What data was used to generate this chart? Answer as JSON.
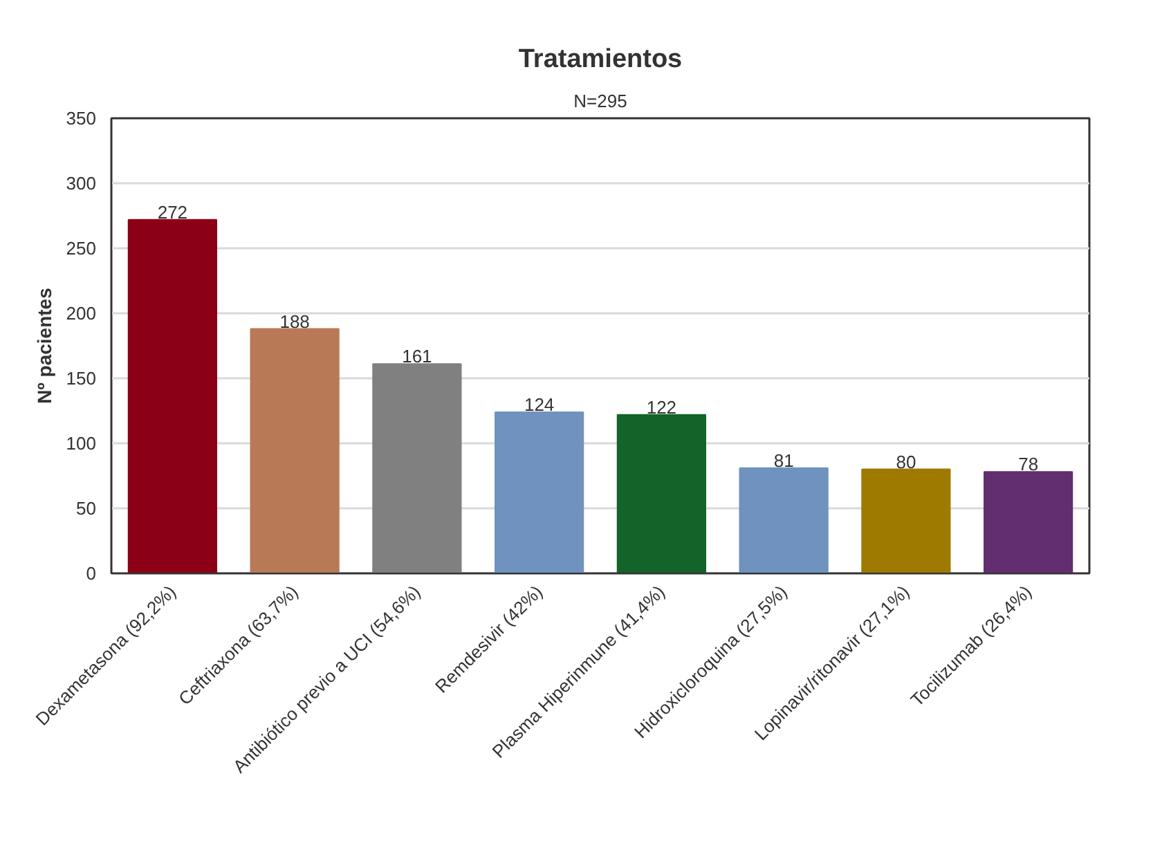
{
  "chart_data": {
    "type": "bar",
    "title": "Tratamientos",
    "subtitle": "N=295",
    "ylabel": "Nº pacientes",
    "categories": [
      "Dexametasona (92,2%)",
      "Ceftriaxona (63,7%)",
      "Antibiótico previo a UCI (54,6%)",
      "Remdesivir (42%)",
      "Plasma Hiperinmune (41,4%)",
      "Hidroxicloroquina (27,5%)",
      "Lopinavir/ritonavir (27,1%)",
      "Tocilizumab (26,4%)"
    ],
    "values": [
      272,
      188,
      161,
      124,
      122,
      81,
      80,
      78
    ],
    "colors": [
      "#8b0016",
      "#b87a56",
      "#808080",
      "#6f92bf",
      "#146329",
      "#6f92bf",
      "#9e7b00",
      "#632e70"
    ],
    "ylim": [
      0,
      350
    ],
    "yticks": [
      0,
      50,
      100,
      150,
      200,
      250,
      300,
      350
    ],
    "grid": "y",
    "data_labels": true
  }
}
